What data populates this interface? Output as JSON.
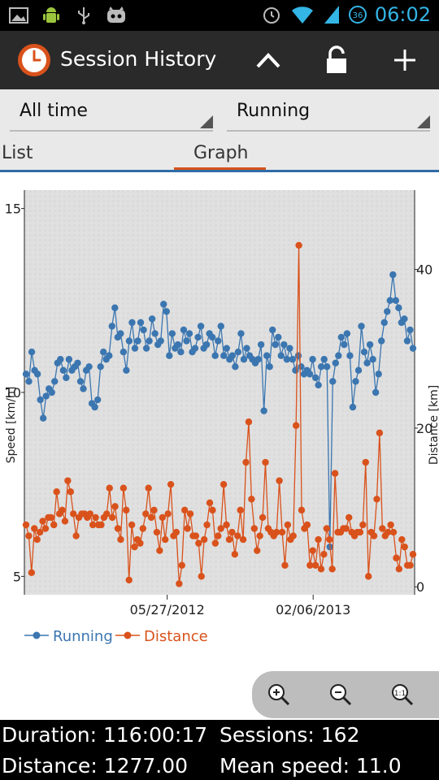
{
  "status": {
    "time": "06:02",
    "battery": "36"
  },
  "actionbar": {
    "title": "Session History"
  },
  "filters": {
    "period": "All time",
    "activity": "Running"
  },
  "tabs": [
    {
      "label": "List"
    },
    {
      "label": "Graph"
    }
  ],
  "colors": {
    "running": "#3b76b0",
    "distance": "#d9521c",
    "accent": "#33b5e5"
  },
  "chart_data": {
    "type": "line",
    "x_ticks": [
      "05/27/2012",
      "02/06/2013"
    ],
    "left_axis": {
      "label": "Speed [km/h]",
      "ticks": [
        5,
        10,
        15
      ],
      "range": [
        4.5,
        15.5
      ]
    },
    "right_axis": {
      "label": "Distance [km]",
      "ticks": [
        0,
        20,
        40
      ],
      "range": [
        -1,
        50
      ]
    },
    "legend": {
      "position": "bottom-left"
    },
    "series": [
      {
        "name": "Running",
        "axis": "left",
        "values": [
          10.5,
          10.3,
          11.1,
          10.6,
          10.5,
          9.8,
          9.3,
          9.9,
          10.1,
          10.0,
          10.3,
          10.8,
          10.9,
          10.6,
          10.4,
          10.9,
          10.6,
          10.7,
          10.8,
          10.3,
          10.1,
          10.6,
          10.7,
          9.7,
          9.6,
          9.8,
          10.7,
          11.1,
          10.9,
          11.0,
          11.8,
          12.3,
          11.5,
          11.6,
          11.1,
          10.6,
          11.4,
          11.9,
          11.2,
          11.4,
          11.9,
          11.7,
          11.2,
          11.4,
          12.0,
          11.6,
          11.3,
          11.4,
          12.4,
          12.2,
          11.0,
          11.6,
          11.2,
          11.3,
          11.1,
          11.7,
          11.4,
          11.6,
          11.1,
          11.2,
          11.5,
          11.8,
          11.2,
          11.3,
          11.6,
          11.5,
          11.0,
          11.4,
          11.8,
          11.0,
          11.2,
          10.9,
          11.0,
          10.7,
          11.1,
          11.6,
          10.9,
          11.2,
          11.0,
          10.9,
          10.8,
          10.9,
          11.3,
          9.5,
          11.0,
          10.7,
          11.7,
          11.3,
          11.5,
          11.0,
          11.3,
          10.9,
          11.2,
          10.9,
          10.6,
          11.0,
          10.7,
          10.5,
          10.6,
          10.5,
          10.9,
          10.4,
          10.2,
          10.7,
          10.9,
          10.7,
          5.8,
          10.3,
          10.8,
          11.0,
          11.5,
          11.3,
          11.6,
          11.0,
          9.6,
          10.3,
          10.6,
          11.8,
          11.1,
          10.8,
          11.3,
          10.9,
          10.0,
          10.5,
          11.4,
          11.9,
          12.2,
          12.5,
          13.2,
          12.5,
          12.3,
          11.9,
          12.0,
          11.4,
          11.7,
          11.2
        ],
        "color": "#3b76b0"
      },
      {
        "name": "Distance",
        "axis": "left",
        "values": [
          6.4,
          6.1,
          5.1,
          6.3,
          6.0,
          6.2,
          6.5,
          6.3,
          6.6,
          6.6,
          6.4,
          7.3,
          6.7,
          6.8,
          6.5,
          7.6,
          7.3,
          6.7,
          6.1,
          6.6,
          6.7,
          6.7,
          6.6,
          6.7,
          6.4,
          6.6,
          6.4,
          6.4,
          6.6,
          6.7,
          7.4,
          6.6,
          6.9,
          6.3,
          6.0,
          7.4,
          6.8,
          4.9,
          6.4,
          5.8,
          6.0,
          5.9,
          6.3,
          6.7,
          7.4,
          6.6,
          6.8,
          6.2,
          5.7,
          6.6,
          6.0,
          6.7,
          7.5,
          6.1,
          6.2,
          4.8,
          5.3,
          6.8,
          6.3,
          6.7,
          6.1,
          6.1,
          5.9,
          5.0,
          6.0,
          6.4,
          7.0,
          6.8,
          5.9,
          6.1,
          6.3,
          7.5,
          6.4,
          6.0,
          6.2,
          5.6,
          6.1,
          6.8,
          6.0,
          8.1,
          9.2,
          7.1,
          6.3,
          5.7,
          6.1,
          6.6,
          8.1,
          6.3,
          6.2,
          6.1,
          6.2,
          7.6,
          6.2,
          5.3,
          6.4,
          6.0,
          6.1,
          9.1,
          14.0,
          6.8,
          6.3,
          6.4,
          5.3,
          5.7,
          5.3,
          6.0,
          5.2,
          5.6,
          6.3,
          6.0,
          5.2,
          7.8,
          6.2,
          6.2,
          6.3,
          6.3,
          6.6,
          6.2,
          6.1,
          6.2,
          6.2,
          6.4,
          8.1,
          5.0,
          6.2,
          6.1,
          7.1,
          8.9,
          6.3,
          6.1,
          6.2,
          6.4,
          6.2,
          5.5,
          5.2,
          6.0,
          5.8,
          5.3,
          5.3,
          5.6
        ],
        "color": "#d9521c"
      }
    ]
  },
  "footer": {
    "duration": "Duration: 116:00:17",
    "sessions": "Sessions: 162",
    "distance": "Distance: 1277.00",
    "mean_speed": "Mean speed: 11.0"
  }
}
